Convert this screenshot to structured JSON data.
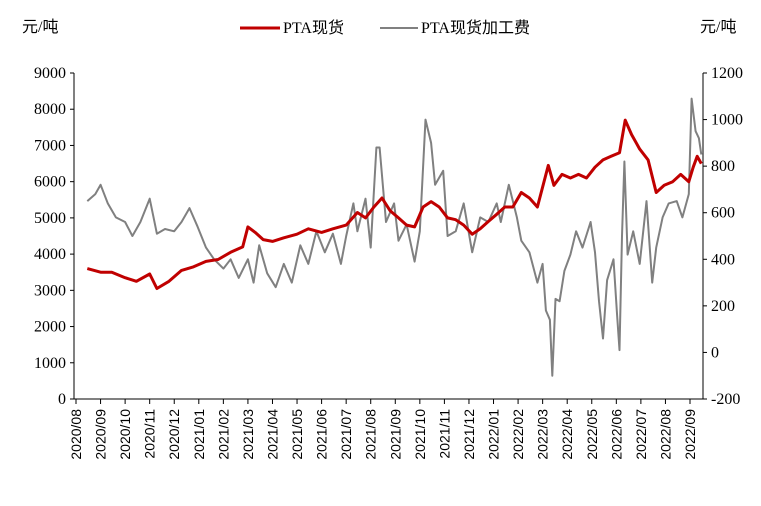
{
  "chart_data": {
    "type": "line",
    "left_unit": "元/吨",
    "right_unit": "元/吨",
    "legend_position": "top",
    "grid": false,
    "left_axis": {
      "ylim": [
        0,
        9000
      ],
      "ticks": [
        "0",
        "1000",
        "2000",
        "3000",
        "4000",
        "5000",
        "6000",
        "7000",
        "8000",
        "9000"
      ]
    },
    "right_axis": {
      "ylim": [
        -200,
        1200
      ],
      "ticks": [
        "-200",
        "0",
        "200",
        "400",
        "600",
        "800",
        "1000",
        "1200"
      ]
    },
    "x_ticks": [
      "2020/08",
      "2020/09",
      "2020/10",
      "2020/11",
      "2020/12",
      "2021/01",
      "2021/02",
      "2021/03",
      "2021/04",
      "2021/05",
      "2021/06",
      "2021/07",
      "2021/08",
      "2021/09",
      "2021/10",
      "2021/11",
      "2021/12",
      "2022/01",
      "2022/02",
      "2022/03",
      "2022/04",
      "2022/05",
      "2022/06",
      "2022/07",
      "2022/08",
      "2022/09"
    ],
    "series": [
      {
        "name": "PTA现货",
        "axis": "left",
        "color": "#c00000",
        "points": [
          [
            "2020-08-15",
            3600
          ],
          [
            "2020-09-01",
            3500
          ],
          [
            "2020-09-15",
            3500
          ],
          [
            "2020-10-01",
            3350
          ],
          [
            "2020-10-15",
            3250
          ],
          [
            "2020-11-01",
            3450
          ],
          [
            "2020-11-10",
            3050
          ],
          [
            "2020-11-25",
            3250
          ],
          [
            "2020-12-10",
            3550
          ],
          [
            "2020-12-25",
            3650
          ],
          [
            "2021-01-10",
            3800
          ],
          [
            "2021-01-25",
            3850
          ],
          [
            "2021-02-10",
            4050
          ],
          [
            "2021-02-25",
            4200
          ],
          [
            "2021-03-01",
            4750
          ],
          [
            "2021-03-10",
            4600
          ],
          [
            "2021-03-20",
            4400
          ],
          [
            "2021-04-01",
            4350
          ],
          [
            "2021-04-15",
            4450
          ],
          [
            "2021-05-01",
            4550
          ],
          [
            "2021-05-15",
            4700
          ],
          [
            "2021-06-01",
            4600
          ],
          [
            "2021-06-15",
            4700
          ],
          [
            "2021-07-01",
            4800
          ],
          [
            "2021-07-15",
            5150
          ],
          [
            "2021-07-25",
            5000
          ],
          [
            "2021-08-05",
            5300
          ],
          [
            "2021-08-15",
            5550
          ],
          [
            "2021-08-25",
            5200
          ],
          [
            "2021-09-05",
            5000
          ],
          [
            "2021-09-15",
            4800
          ],
          [
            "2021-09-25",
            4750
          ],
          [
            "2021-10-05",
            5300
          ],
          [
            "2021-10-15",
            5450
          ],
          [
            "2021-10-25",
            5300
          ],
          [
            "2021-11-05",
            5000
          ],
          [
            "2021-11-15",
            4950
          ],
          [
            "2021-11-25",
            4800
          ],
          [
            "2021-12-05",
            4550
          ],
          [
            "2021-12-15",
            4700
          ],
          [
            "2021-12-25",
            4900
          ],
          [
            "2022-01-05",
            5100
          ],
          [
            "2022-01-15",
            5300
          ],
          [
            "2022-01-25",
            5300
          ],
          [
            "2022-02-05",
            5700
          ],
          [
            "2022-02-15",
            5550
          ],
          [
            "2022-02-25",
            5300
          ],
          [
            "2022-03-08",
            6450
          ],
          [
            "2022-03-15",
            5900
          ],
          [
            "2022-03-25",
            6200
          ],
          [
            "2022-04-05",
            6100
          ],
          [
            "2022-04-15",
            6200
          ],
          [
            "2022-04-25",
            6100
          ],
          [
            "2022-05-05",
            6400
          ],
          [
            "2022-05-15",
            6600
          ],
          [
            "2022-05-25",
            6700
          ],
          [
            "2022-06-05",
            6800
          ],
          [
            "2022-06-12",
            7700
          ],
          [
            "2022-06-20",
            7300
          ],
          [
            "2022-06-30",
            6900
          ],
          [
            "2022-07-10",
            6600
          ],
          [
            "2022-07-20",
            5700
          ],
          [
            "2022-07-30",
            5900
          ],
          [
            "2022-08-10",
            6000
          ],
          [
            "2022-08-20",
            6200
          ],
          [
            "2022-08-30",
            6000
          ],
          [
            "2022-09-05",
            6400
          ],
          [
            "2022-09-10",
            6700
          ],
          [
            "2022-09-15",
            6500
          ]
        ]
      },
      {
        "name": "PTA现货加工费",
        "axis": "right",
        "color": "#808080",
        "points": [
          [
            "2020-08-15",
            650
          ],
          [
            "2020-08-25",
            680
          ],
          [
            "2020-09-01",
            720
          ],
          [
            "2020-09-10",
            640
          ],
          [
            "2020-09-20",
            580
          ],
          [
            "2020-10-01",
            560
          ],
          [
            "2020-10-10",
            500
          ],
          [
            "2020-10-20",
            560
          ],
          [
            "2020-11-01",
            660
          ],
          [
            "2020-11-10",
            510
          ],
          [
            "2020-11-20",
            530
          ],
          [
            "2020-12-01",
            520
          ],
          [
            "2020-12-10",
            560
          ],
          [
            "2020-12-20",
            620
          ],
          [
            "2020-12-30",
            540
          ],
          [
            "2021-01-10",
            450
          ],
          [
            "2021-01-20",
            400
          ],
          [
            "2021-02-01",
            360
          ],
          [
            "2021-02-10",
            400
          ],
          [
            "2021-02-20",
            320
          ],
          [
            "2021-03-01",
            400
          ],
          [
            "2021-03-08",
            300
          ],
          [
            "2021-03-15",
            460
          ],
          [
            "2021-03-25",
            340
          ],
          [
            "2021-04-05",
            280
          ],
          [
            "2021-04-15",
            380
          ],
          [
            "2021-04-25",
            300
          ],
          [
            "2021-05-05",
            460
          ],
          [
            "2021-05-15",
            380
          ],
          [
            "2021-05-25",
            520
          ],
          [
            "2021-06-05",
            430
          ],
          [
            "2021-06-15",
            510
          ],
          [
            "2021-06-25",
            380
          ],
          [
            "2021-07-01",
            500
          ],
          [
            "2021-07-10",
            640
          ],
          [
            "2021-07-15",
            520
          ],
          [
            "2021-07-25",
            660
          ],
          [
            "2021-08-01",
            450
          ],
          [
            "2021-08-08",
            880
          ],
          [
            "2021-08-12",
            880
          ],
          [
            "2021-08-20",
            560
          ],
          [
            "2021-08-30",
            640
          ],
          [
            "2021-09-05",
            480
          ],
          [
            "2021-09-15",
            550
          ],
          [
            "2021-09-25",
            390
          ],
          [
            "2021-10-01",
            520
          ],
          [
            "2021-10-08",
            1000
          ],
          [
            "2021-10-15",
            900
          ],
          [
            "2021-10-20",
            720
          ],
          [
            "2021-10-30",
            780
          ],
          [
            "2021-11-05",
            500
          ],
          [
            "2021-11-15",
            520
          ],
          [
            "2021-11-25",
            640
          ],
          [
            "2021-12-05",
            430
          ],
          [
            "2021-12-15",
            580
          ],
          [
            "2021-12-25",
            560
          ],
          [
            "2022-01-05",
            640
          ],
          [
            "2022-01-10",
            560
          ],
          [
            "2022-01-20",
            720
          ],
          [
            "2022-01-30",
            580
          ],
          [
            "2022-02-05",
            480
          ],
          [
            "2022-02-15",
            430
          ],
          [
            "2022-02-25",
            300
          ],
          [
            "2022-03-01",
            380
          ],
          [
            "2022-03-05",
            180
          ],
          [
            "2022-03-10",
            140
          ],
          [
            "2022-03-13",
            -100
          ],
          [
            "2022-03-17",
            230
          ],
          [
            "2022-03-22",
            220
          ],
          [
            "2022-03-28",
            350
          ],
          [
            "2022-04-05",
            420
          ],
          [
            "2022-04-12",
            520
          ],
          [
            "2022-04-20",
            450
          ],
          [
            "2022-04-30",
            560
          ],
          [
            "2022-05-05",
            430
          ],
          [
            "2022-05-10",
            220
          ],
          [
            "2022-05-15",
            60
          ],
          [
            "2022-05-20",
            310
          ],
          [
            "2022-05-28",
            400
          ],
          [
            "2022-06-02",
            160
          ],
          [
            "2022-06-05",
            10
          ],
          [
            "2022-06-08",
            500
          ],
          [
            "2022-06-11",
            820
          ],
          [
            "2022-06-15",
            420
          ],
          [
            "2022-06-22",
            520
          ],
          [
            "2022-06-30",
            380
          ],
          [
            "2022-07-08",
            650
          ],
          [
            "2022-07-15",
            300
          ],
          [
            "2022-07-20",
            450
          ],
          [
            "2022-07-28",
            580
          ],
          [
            "2022-08-05",
            640
          ],
          [
            "2022-08-15",
            650
          ],
          [
            "2022-08-22",
            580
          ],
          [
            "2022-08-30",
            680
          ],
          [
            "2022-09-03",
            1090
          ],
          [
            "2022-09-08",
            950
          ],
          [
            "2022-09-12",
            920
          ],
          [
            "2022-09-15",
            850
          ]
        ]
      }
    ]
  }
}
